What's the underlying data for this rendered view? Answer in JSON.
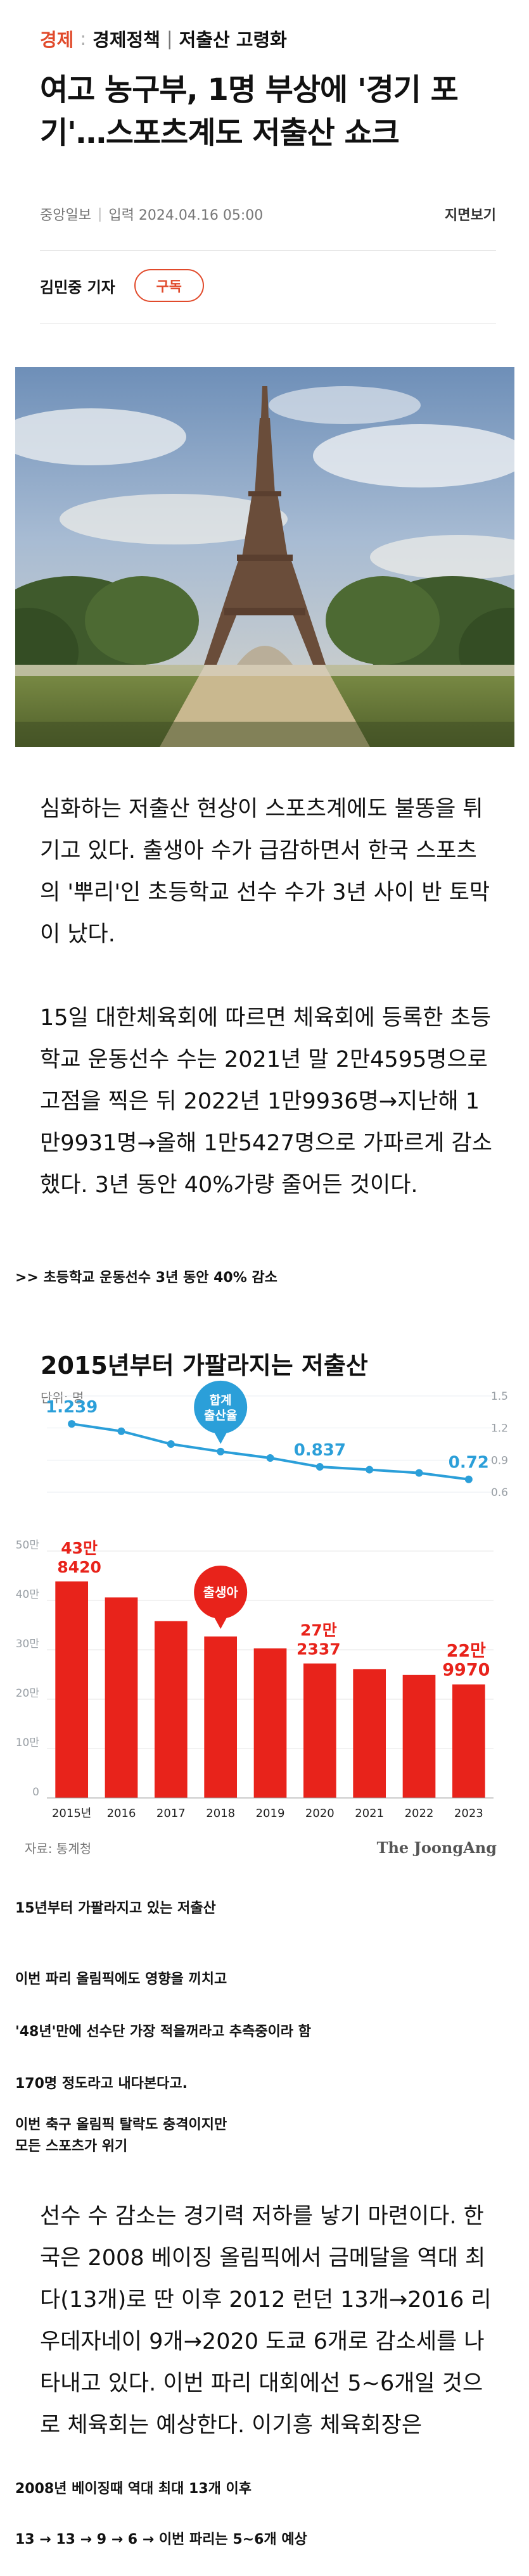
{
  "breadcrumb": {
    "section": "경제",
    "subsection": "경제정책",
    "topic": "저출산 고령화"
  },
  "headline": "여고 농구부, 1명 부상에 '경기 포기'…스포츠계도 저출산 쇼크",
  "meta": {
    "publisher": "중앙일보",
    "date_label": "입력 2024.04.16 05:00",
    "paper_view": "지면보기"
  },
  "byline": {
    "reporter": "김민중 기자",
    "subscribe": "구독"
  },
  "paragraphs": [
    "심화하는 저출산 현상이 스포츠계에도 불똥을 튀기고 있다. 출생아 수가 급감하면서 한국 스포츠의 '뿌리'인 초등학교 선수 수가 3년 사이 반 토막이 났다.",
    "15일 대한체육회에 따르면 체육회에 등록한 초등학교 운동선수 수는 2021년 말 2만4595명으로 고점을 찍은 뒤 2022년 1만9936명→지난해 1만9931명→올해 1만5427명으로 가파르게 감소했다. 3년 동안 40%가량 줄어든 것이다.",
    "선수 수 감소는 경기력 저하를 낳기 마련이다. 한국은 2008 베이징 올림픽에서 금메달을 역대 최다(13개)로 딴 이후 2012 런던 13개→2016 리우데자네이 9개→2020 도쿄 6개로 감소세를 나타내고 있다. 이번 파리 대회에선 5~6개일 것으로 체육회는 예상한다. 이기흥 체육회장은"
  ],
  "captions": {
    "c1": ">> 초등학교 운동선수 3년 동안 40% 감소",
    "c2": "15년부터 가팔라지고 있는 저출산",
    "c3": "이번 파리 올림픽에도 영향을 끼치고",
    "c4": "'48년'만에 선수단 가장 적을꺼라고 추측중이라 함",
    "c5": "170명 정도라고 내다본다고.",
    "c6a": "이번 축구 올림픽 탈락도 충격이지만",
    "c6b": "모든 스포츠가 위기",
    "c7": "2008년 베이징때 역대 최대 13개 이후",
    "c8": "13 → 13 → 9 → 6 → 이번 파리는 5~6개 예상"
  },
  "chart_data": {
    "type": "bar",
    "title": "2015년부터 가팔라지는 저출산",
    "unit_label": "단위: 명",
    "source": "자료: 통계청",
    "brand": "The JoongAng",
    "categories": [
      "2015년",
      "2016",
      "2017",
      "2018",
      "2019",
      "2020",
      "2021",
      "2022",
      "2023"
    ],
    "series": [
      {
        "name": "출생아",
        "kind": "bar",
        "unit": "만",
        "values": [
          43.842,
          40.6,
          35.8,
          32.7,
          30.3,
          27.2337,
          26.1,
          24.9,
          22.997
        ]
      },
      {
        "name": "합계출산율",
        "kind": "line",
        "values": [
          1.239,
          1.17,
          1.05,
          0.98,
          0.92,
          0.837,
          0.81,
          0.78,
          0.72
        ]
      }
    ],
    "left_axis": {
      "ticks": [
        "0",
        "10만",
        "20만",
        "30만",
        "40만",
        "50만"
      ],
      "ylim": [
        0,
        50
      ]
    },
    "right_axis": {
      "ticks": [
        "0.6",
        "0.9",
        "1.2",
        "1.5"
      ],
      "ylim": [
        0.6,
        1.5
      ]
    },
    "labels": {
      "bar_first_top": "43만",
      "bar_first_bottom": "8420",
      "bar_2020_top": "27만",
      "bar_2020_bottom": "2337",
      "bar_last_top": "22만",
      "bar_last_bottom": "9970",
      "line_first": "1.239",
      "line_2020": "0.837",
      "line_last": "0.72",
      "callout_line": "합계\n출산율",
      "callout_bar": "출생아"
    },
    "colors": {
      "bar": "#e8231b",
      "line": "#2b9fd9",
      "title": "#111111",
      "axis_text": "#9aa0a6"
    }
  }
}
